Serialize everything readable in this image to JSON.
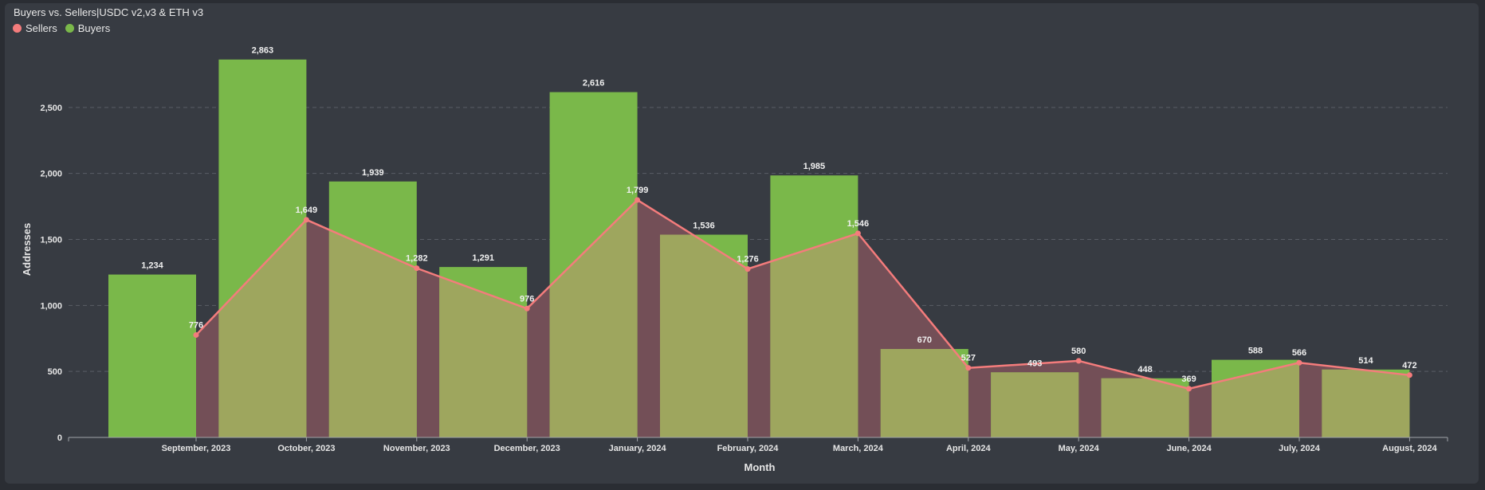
{
  "colors": {
    "sellers": "#f47c7c",
    "buyers": "#7ab84a",
    "overlap": "#9ea65e",
    "seller_fill": "#734f57"
  },
  "chart_data": {
    "type": "bar",
    "title": "Buyers vs. Sellers|USDC v2,v3 & ETH v3",
    "xlabel": "Month",
    "ylabel": "Addresses",
    "ylim": [
      0,
      3000
    ],
    "yticks": [
      0,
      500,
      1000,
      1500,
      2000,
      2500
    ],
    "ytick_labels": [
      "0",
      "500",
      "1,000",
      "1,500",
      "2,000",
      "2,500"
    ],
    "legend_position": "top-left",
    "grid": true,
    "categories": [
      "September, 2023",
      "October, 2023",
      "November, 2023",
      "December, 2023",
      "January, 2024",
      "February, 2024",
      "March, 2024",
      "April, 2024",
      "May, 2024",
      "June, 2024",
      "July, 2024",
      "August, 2024"
    ],
    "series": [
      {
        "name": "Sellers",
        "type": "line-area",
        "values": [
          776,
          1649,
          1282,
          976,
          1799,
          1276,
          1546,
          527,
          580,
          369,
          566,
          472
        ],
        "labels": [
          "776",
          "1,649",
          "1,282",
          "976",
          "1,799",
          "1,276",
          "1,546",
          "527",
          "580",
          "369",
          "566",
          "472"
        ]
      },
      {
        "name": "Buyers",
        "type": "bar",
        "values": [
          1234,
          2863,
          1939,
          1291,
          2616,
          1536,
          1985,
          670,
          493,
          448,
          588,
          514
        ],
        "labels": [
          "1,234",
          "2,863",
          "1,939",
          "1,291",
          "2,616",
          "1,536",
          "1,985",
          "670",
          "493",
          "448",
          "588",
          "514"
        ]
      }
    ]
  }
}
